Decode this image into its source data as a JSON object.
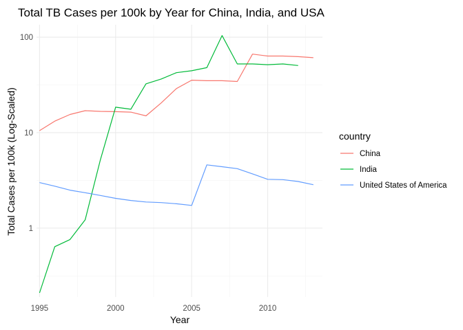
{
  "chart_data": {
    "type": "line",
    "title": "Total TB Cases per 100k by Year for China, India, and USA",
    "xlabel": "Year",
    "ylabel": "Total Cases per 100k (Log-Scaled)",
    "y_scale": "log10",
    "xlim": [
      1994.8,
      2013.6
    ],
    "ylim": [
      0.19,
      135
    ],
    "x_ticks": [
      1995,
      2000,
      2005,
      2010
    ],
    "x_tick_labels": [
      "1995",
      "2000",
      "2005",
      "2010"
    ],
    "y_ticks": [
      1,
      10,
      100
    ],
    "y_tick_labels": [
      "1",
      "10",
      "100"
    ],
    "grid": true,
    "legend": {
      "title": "country",
      "placement": "right"
    },
    "series": [
      {
        "name": "China",
        "color": "#F8766D",
        "x": [
          1995,
          1996,
          1997,
          1998,
          1999,
          2000,
          2001,
          2002,
          2003,
          2004,
          2005,
          2006,
          2007,
          2008,
          2009,
          2010,
          2011,
          2012,
          2013
        ],
        "y": [
          10.5,
          13.2,
          15.5,
          17.0,
          16.7,
          16.6,
          16.4,
          15.0,
          20.5,
          29.0,
          35.5,
          35.0,
          35.0,
          34.4,
          66.5,
          63.5,
          63.5,
          62.5,
          61.0
        ]
      },
      {
        "name": "India",
        "color": "#00BA38",
        "x": [
          1995,
          1996,
          1997,
          1998,
          1999,
          2000,
          2001,
          2002,
          2003,
          2004,
          2005,
          2006,
          2007,
          2008,
          2009,
          2010,
          2011,
          2012
        ],
        "y": [
          0.21,
          0.64,
          0.76,
          1.22,
          5.2,
          18.5,
          17.6,
          32.5,
          36.5,
          42.5,
          44.5,
          48.0,
          104.0,
          52.5,
          52.5,
          51.5,
          52.5,
          50.5
        ]
      },
      {
        "name": "United States of America",
        "color": "#619CFF",
        "x": [
          1995,
          1996,
          1997,
          1998,
          1999,
          2000,
          2001,
          2002,
          2003,
          2004,
          2005,
          2006,
          2007,
          2008,
          2009,
          2010,
          2011,
          2012,
          2013
        ],
        "y": [
          3.0,
          2.75,
          2.5,
          2.35,
          2.2,
          2.05,
          1.95,
          1.88,
          1.85,
          1.8,
          1.73,
          4.6,
          4.4,
          4.2,
          3.7,
          3.25,
          3.22,
          3.08,
          2.85
        ]
      }
    ]
  }
}
